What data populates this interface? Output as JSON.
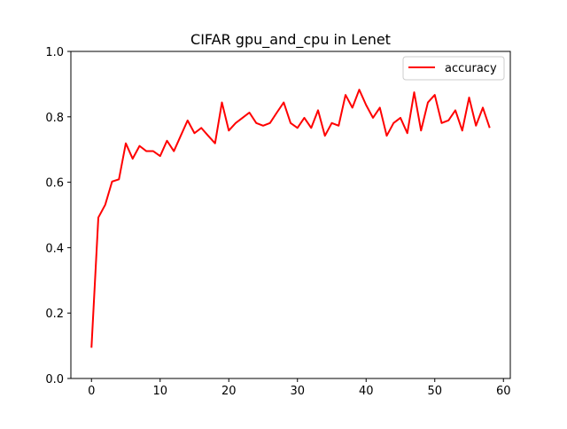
{
  "chart_data": {
    "type": "line",
    "title": "CIFAR gpu_and_cpu in Lenet",
    "xlabel": "",
    "ylabel": "",
    "xlim": [
      -3,
      61
    ],
    "ylim": [
      0.0,
      1.0
    ],
    "xticks": [
      0,
      10,
      20,
      30,
      40,
      50,
      60
    ],
    "yticks": [
      0.0,
      0.2,
      0.4,
      0.6,
      0.8,
      1.0
    ],
    "xtick_labels": [
      "0",
      "10",
      "20",
      "30",
      "40",
      "50",
      "60"
    ],
    "ytick_labels": [
      "0.0",
      "0.2",
      "0.4",
      "0.6",
      "0.8",
      "1.0"
    ],
    "grid": false,
    "legend_position": "top-right",
    "series": [
      {
        "name": "accuracy",
        "color": "#ff0000",
        "x": [
          0,
          1,
          2,
          3,
          4,
          5,
          6,
          7,
          8,
          9,
          10,
          11,
          12,
          13,
          14,
          15,
          16,
          17,
          18,
          19,
          20,
          21,
          22,
          23,
          24,
          25,
          26,
          27,
          28,
          29,
          30,
          31,
          32,
          33,
          34,
          35,
          36,
          37,
          38,
          39,
          40,
          41,
          42,
          43,
          44,
          45,
          46,
          47,
          48,
          49,
          50,
          51,
          52,
          53,
          54,
          55,
          56,
          57,
          58
        ],
        "values": [
          0.094,
          0.492,
          0.531,
          0.602,
          0.609,
          0.719,
          0.672,
          0.711,
          0.695,
          0.695,
          0.68,
          0.727,
          0.695,
          0.742,
          0.789,
          0.75,
          0.766,
          0.742,
          0.719,
          0.844,
          0.758,
          0.781,
          0.797,
          0.813,
          0.781,
          0.773,
          0.781,
          0.813,
          0.844,
          0.781,
          0.766,
          0.797,
          0.766,
          0.82,
          0.742,
          0.781,
          0.773,
          0.867,
          0.828,
          0.883,
          0.836,
          0.797,
          0.828,
          0.742,
          0.781,
          0.797,
          0.75,
          0.875,
          0.758,
          0.844,
          0.867,
          0.781,
          0.789,
          0.82,
          0.758,
          0.859,
          0.773,
          0.828,
          0.766
        ]
      }
    ]
  }
}
